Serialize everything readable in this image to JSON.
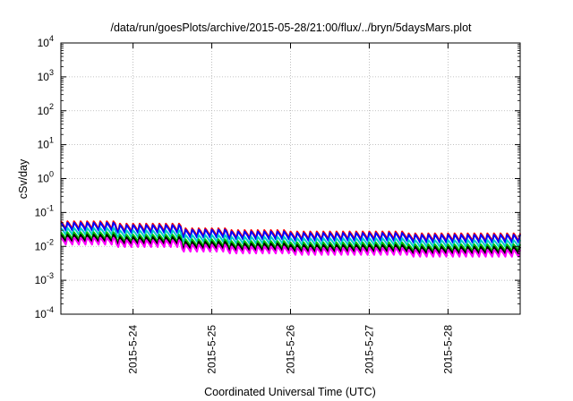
{
  "chart_data": {
    "type": "line",
    "title": "/data/run/goesPlots/archive/2015-05-28/21:00/flux/../bryn/5daysMars.plot",
    "xlabel": "Coordinated Universal Time (UTC)",
    "ylabel": "cSv/day",
    "yscale": "log",
    "ylim": [
      0.0001,
      10000
    ],
    "y_ticks": [
      {
        "base": "10",
        "exp": "-4"
      },
      {
        "base": "10",
        "exp": "-3"
      },
      {
        "base": "10",
        "exp": "-2"
      },
      {
        "base": "10",
        "exp": "-1"
      },
      {
        "base": "10",
        "exp": "0"
      },
      {
        "base": "10",
        "exp": "1"
      },
      {
        "base": "10",
        "exp": "2"
      },
      {
        "base": "10",
        "exp": "3"
      },
      {
        "base": "10",
        "exp": "4"
      }
    ],
    "xlim": [
      "2015-05-23 02:00",
      "2015-05-28 22:00"
    ],
    "x_ticks": [
      "2015-5-24",
      "2015-5-25",
      "2015-5-26",
      "2015-5-27",
      "2015-5-28"
    ],
    "grid": true,
    "sample_interval_hours": 2,
    "series": [
      {
        "color": "#ff0000",
        "base": 0.055,
        "sawtooth_depth": 0.55
      },
      {
        "color": "#0000ff",
        "base": 0.05,
        "sawtooth_depth": 0.55
      },
      {
        "color": "#00cccc",
        "base": 0.035,
        "sawtooth_depth": 0.5
      },
      {
        "color": "#00c000",
        "base": 0.026,
        "sawtooth_depth": 0.5
      },
      {
        "color": "#000000",
        "base": 0.022,
        "sawtooth_depth": 0.5
      },
      {
        "color": "#ff00ff",
        "base": 0.018,
        "sawtooth_depth": 0.5
      }
    ],
    "level_shifts": [
      {
        "date": "2015-05-23 02:00",
        "factor": 1.0
      },
      {
        "date": "2015-05-23 19:00",
        "factor": 0.85
      },
      {
        "date": "2015-05-24 15:00",
        "factor": 0.62
      },
      {
        "date": "2015-05-25 05:00",
        "factor": 0.55
      },
      {
        "date": "2015-05-26 00:00",
        "factor": 0.5
      },
      {
        "date": "2015-05-27 12:00",
        "factor": 0.44
      }
    ]
  }
}
